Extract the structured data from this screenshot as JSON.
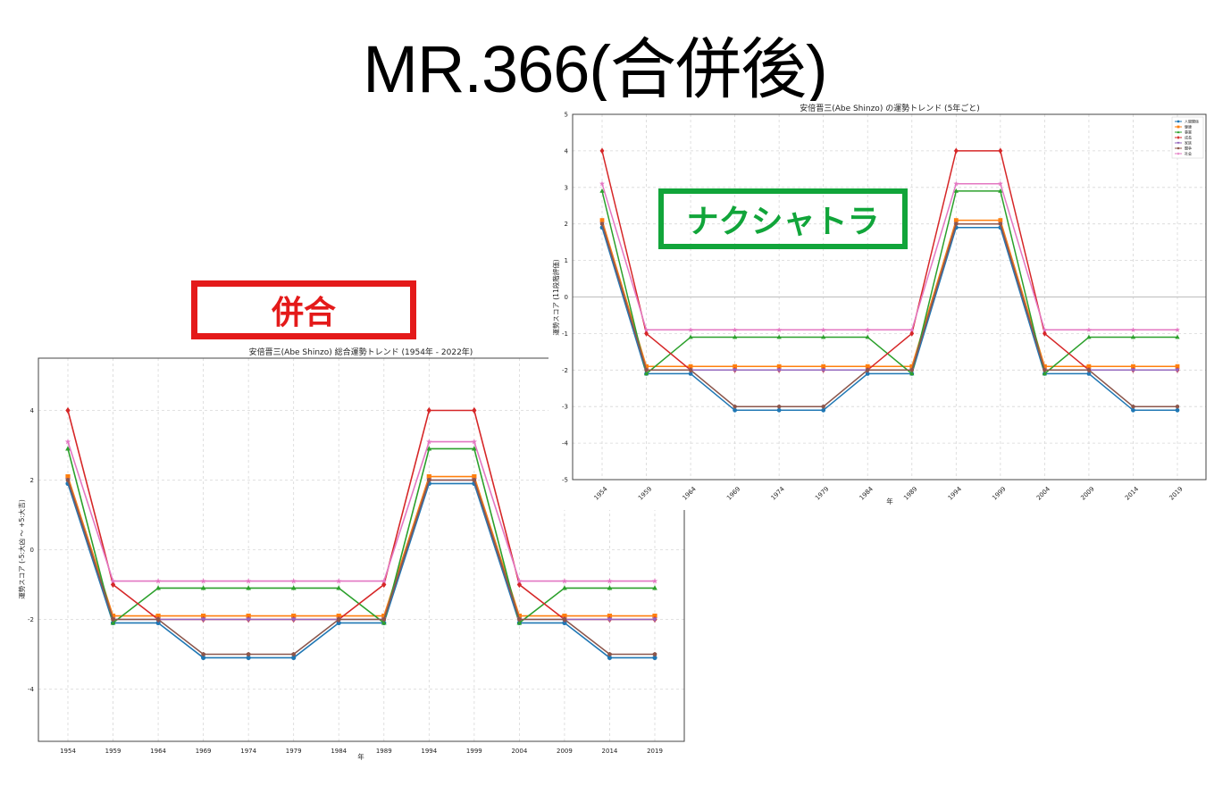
{
  "page": {
    "title": "MR.366(合併後)"
  },
  "labels": {
    "left": "併合",
    "right": "ナクシャトラ"
  },
  "colors": {
    "series": [
      "#1f77b4",
      "#ff7f0e",
      "#2ca02c",
      "#d62728",
      "#9467bd",
      "#8c564b",
      "#e377c2"
    ],
    "label_left": "#e41a1a",
    "label_right": "#11a53a"
  },
  "chart_data": [
    {
      "type": "line",
      "title": "安倍晋三(Abe Shinzo) 総合運勢トレンド (1954年 - 2022年)",
      "xlabel": "年",
      "ylabel": "運勢スコア (-5:大凶 ～ +5:大吉)",
      "ylim": [
        -5.5,
        5.5
      ],
      "yticks": [
        -4,
        -2,
        0,
        2,
        4
      ],
      "grid": true,
      "legend": "none",
      "categories": [
        "1954",
        "1959",
        "1964",
        "1969",
        "1974",
        "1979",
        "1984",
        "1989",
        "1994",
        "1999",
        "2004",
        "2009",
        "2014",
        "2019"
      ],
      "series": [
        {
          "values": [
            1.9,
            -2.1,
            -2.1,
            -3.1,
            -3.1,
            -3.1,
            -2.1,
            -2.1,
            1.9,
            1.9,
            -2.1,
            -2.1,
            -3.1,
            -3.1
          ],
          "marker": "circle"
        },
        {
          "values": [
            2.1,
            -1.9,
            -1.9,
            -1.9,
            -1.9,
            -1.9,
            -1.9,
            -1.9,
            2.1,
            2.1,
            -1.9,
            -1.9,
            -1.9,
            -1.9
          ],
          "marker": "square"
        },
        {
          "values": [
            2.9,
            -2.1,
            -1.1,
            -1.1,
            -1.1,
            -1.1,
            -1.1,
            -2.1,
            2.9,
            2.9,
            -2.1,
            -1.1,
            -1.1,
            -1.1
          ],
          "marker": "triangle"
        },
        {
          "values": [
            4.0,
            -1.0,
            -2.0,
            -2.0,
            -2.0,
            -2.0,
            -2.0,
            -1.0,
            4.0,
            4.0,
            -1.0,
            -2.0,
            -2.0,
            -2.0
          ],
          "marker": "diamond"
        },
        {
          "values": [
            2.0,
            -2.0,
            -2.0,
            -2.0,
            -2.0,
            -2.0,
            -2.0,
            -2.0,
            2.0,
            2.0,
            -2.0,
            -2.0,
            -2.0,
            -2.0
          ],
          "marker": "triangle-down"
        },
        {
          "values": [
            2.0,
            -2.0,
            -2.0,
            -3.0,
            -3.0,
            -3.0,
            -2.0,
            -2.0,
            2.0,
            2.0,
            -2.0,
            -2.0,
            -3.0,
            -3.0
          ],
          "marker": "hexagon"
        },
        {
          "values": [
            3.1,
            -0.9,
            -0.9,
            -0.9,
            -0.9,
            -0.9,
            -0.9,
            -0.9,
            3.1,
            3.1,
            -0.9,
            -0.9,
            -0.9,
            -0.9
          ],
          "marker": "star"
        }
      ]
    },
    {
      "type": "line",
      "title": "安倍晋三(Abe Shinzo) の運勢トレンド (5年ごと)",
      "xlabel": "年",
      "ylabel": "運勢スコア (11段階評価)",
      "ylim": [
        -5,
        5
      ],
      "yticks": [
        -5,
        -4,
        -3,
        -2,
        -1,
        0,
        1,
        2,
        3,
        4,
        5
      ],
      "grid": true,
      "zero_line": true,
      "legend": "top-right",
      "categories": [
        "1954",
        "1959",
        "1964",
        "1969",
        "1974",
        "1979",
        "1984",
        "1989",
        "1994",
        "1999",
        "2004",
        "2009",
        "2014",
        "2019"
      ],
      "series": [
        {
          "name": "人間関係",
          "values": [
            1.9,
            -2.1,
            -2.1,
            -3.1,
            -3.1,
            -3.1,
            -2.1,
            -2.1,
            1.9,
            1.9,
            -2.1,
            -2.1,
            -3.1,
            -3.1
          ],
          "marker": "circle"
        },
        {
          "name": "健康",
          "values": [
            2.1,
            -1.9,
            -1.9,
            -1.9,
            -1.9,
            -1.9,
            -1.9,
            -1.9,
            2.1,
            2.1,
            -1.9,
            -1.9,
            -1.9,
            -1.9
          ],
          "marker": "square"
        },
        {
          "name": "事業",
          "values": [
            2.9,
            -2.1,
            -1.1,
            -1.1,
            -1.1,
            -1.1,
            -1.1,
            -2.1,
            2.9,
            2.9,
            -2.1,
            -1.1,
            -1.1,
            -1.1
          ],
          "marker": "triangle"
        },
        {
          "name": "成長",
          "values": [
            4.0,
            -1.0,
            -2.0,
            -2.0,
            -2.0,
            -2.0,
            -2.0,
            -1.0,
            4.0,
            4.0,
            -1.0,
            -2.0,
            -2.0,
            -2.0
          ],
          "marker": "diamond"
        },
        {
          "name": "家族",
          "values": [
            2.0,
            -2.0,
            -2.0,
            -2.0,
            -2.0,
            -2.0,
            -2.0,
            -2.0,
            2.0,
            2.0,
            -2.0,
            -2.0,
            -2.0,
            -2.0
          ],
          "marker": "triangle-down"
        },
        {
          "name": "闘争",
          "values": [
            2.0,
            -2.0,
            -2.0,
            -3.0,
            -3.0,
            -3.0,
            -2.0,
            -2.0,
            2.0,
            2.0,
            -2.0,
            -2.0,
            -3.0,
            -3.0
          ],
          "marker": "hexagon"
        },
        {
          "name": "社会",
          "values": [
            3.1,
            -0.9,
            -0.9,
            -0.9,
            -0.9,
            -0.9,
            -0.9,
            -0.9,
            3.1,
            3.1,
            -0.9,
            -0.9,
            -0.9,
            -0.9
          ],
          "marker": "star"
        }
      ]
    }
  ]
}
